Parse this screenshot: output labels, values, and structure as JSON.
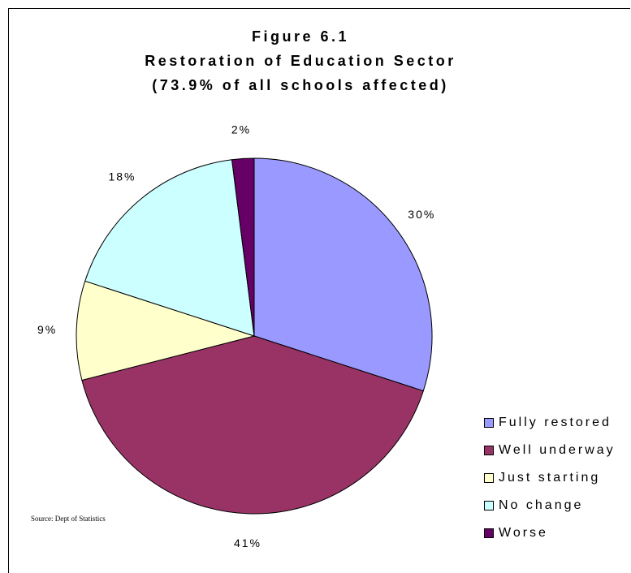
{
  "title": {
    "line1": "Figure 6.1",
    "line2": "Restoration of Education Sector",
    "line3": "(73.9% of all schools affected)"
  },
  "source": "Source:  Dept of Statistics",
  "chart_data": {
    "type": "pie",
    "title": "Figure 6.1 Restoration of Education Sector (73.9% of all schools affected)",
    "categories": [
      "Fully restored",
      "Well underway",
      "Just starting",
      "No change",
      "Worse"
    ],
    "values": [
      30,
      41,
      9,
      18,
      2
    ],
    "labels": [
      "30%",
      "41%",
      "9%",
      "18%",
      "2%"
    ],
    "colors": [
      "#9999ff",
      "#993366",
      "#ffffcc",
      "#ccffff",
      "#660066"
    ],
    "legend_position": "bottom-right"
  }
}
